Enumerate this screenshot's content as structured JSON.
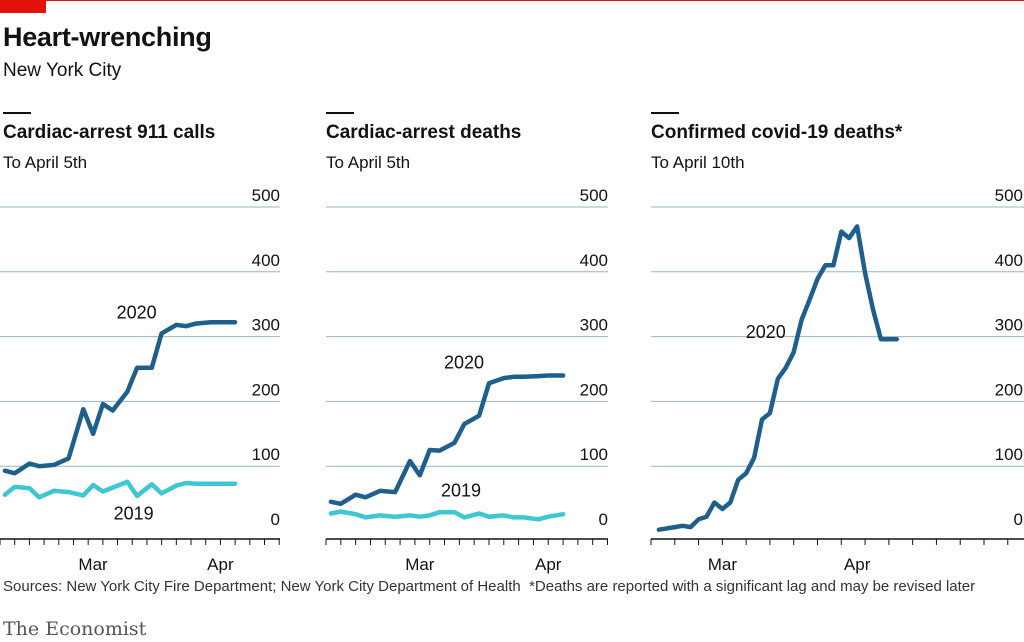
{
  "header": {
    "title": "Heart-wrenching",
    "subtitle": "New York City"
  },
  "colors": {
    "series_2020": "#1f5f8b",
    "series_2019": "#3ec7d3",
    "grid": "#9bb3c5",
    "red_tag": "#e3120b"
  },
  "chart_data": [
    {
      "type": "line",
      "title": "Cardiac-arrest 911 calls",
      "subtitle": "To April 5th",
      "ylim": [
        0,
        500
      ],
      "yticks": [
        "0",
        "100",
        "200",
        "300",
        "400",
        "500"
      ],
      "xticks": [
        "Mar",
        "Apr"
      ],
      "grid": true,
      "x_axis": "dates, 2020-02-18 to 2020-04-05",
      "series": [
        {
          "name": "2020",
          "x": [
            "2020-02-18",
            "2020-02-20",
            "2020-02-23",
            "2020-02-25",
            "2020-02-28",
            "2020-03-02",
            "2020-03-05",
            "2020-03-07",
            "2020-03-09",
            "2020-03-11",
            "2020-03-14",
            "2020-03-16",
            "2020-03-19",
            "2020-03-21",
            "2020-03-24",
            "2020-03-26",
            "2020-03-28",
            "2020-03-31",
            "2020-04-02",
            "2020-04-05"
          ],
          "values": [
            93,
            89,
            104,
            100,
            102,
            112,
            188,
            150,
            196,
            186,
            215,
            252,
            252,
            305,
            318,
            316,
            320,
            322,
            322,
            322
          ]
        },
        {
          "name": "2019",
          "x": [
            "2020-02-18",
            "2020-02-20",
            "2020-02-23",
            "2020-02-25",
            "2020-02-28",
            "2020-03-02",
            "2020-03-05",
            "2020-03-07",
            "2020-03-09",
            "2020-03-11",
            "2020-03-14",
            "2020-03-16",
            "2020-03-19",
            "2020-03-21",
            "2020-03-24",
            "2020-03-26",
            "2020-03-28",
            "2020-03-31",
            "2020-04-02",
            "2020-04-05"
          ],
          "values": [
            56,
            68,
            66,
            52,
            62,
            60,
            55,
            71,
            61,
            67,
            76,
            54,
            72,
            58,
            70,
            74,
            73,
            73,
            73,
            73
          ]
        }
      ],
      "labels": [
        {
          "text": "2020",
          "series": "2020"
        },
        {
          "text": "2019",
          "series": "2019"
        }
      ]
    },
    {
      "type": "line",
      "title": "Cardiac-arrest deaths",
      "subtitle": "To April 5th",
      "ylim": [
        0,
        500
      ],
      "yticks": [
        "0",
        "100",
        "200",
        "300",
        "400",
        "500"
      ],
      "xticks": [
        "Mar",
        "Apr"
      ],
      "grid": true,
      "x_axis": "dates, 2020-02-18 to 2020-04-05",
      "series": [
        {
          "name": "2020",
          "x": [
            "2020-02-18",
            "2020-02-20",
            "2020-02-23",
            "2020-02-25",
            "2020-02-28",
            "2020-03-02",
            "2020-03-05",
            "2020-03-07",
            "2020-03-09",
            "2020-03-11",
            "2020-03-14",
            "2020-03-16",
            "2020-03-19",
            "2020-03-21",
            "2020-03-24",
            "2020-03-26",
            "2020-03-28",
            "2020-03-31",
            "2020-04-02",
            "2020-04-05"
          ],
          "values": [
            45,
            42,
            56,
            52,
            62,
            60,
            108,
            86,
            125,
            124,
            136,
            165,
            178,
            228,
            236,
            238,
            238,
            239,
            240,
            240
          ]
        },
        {
          "name": "2019",
          "x": [
            "2020-02-18",
            "2020-02-20",
            "2020-02-23",
            "2020-02-25",
            "2020-02-28",
            "2020-03-02",
            "2020-03-05",
            "2020-03-07",
            "2020-03-09",
            "2020-03-11",
            "2020-03-14",
            "2020-03-16",
            "2020-03-19",
            "2020-03-21",
            "2020-03-24",
            "2020-03-26",
            "2020-03-28",
            "2020-03-31",
            "2020-04-02",
            "2020-04-05"
          ],
          "values": [
            27,
            30,
            26,
            21,
            24,
            22,
            24,
            22,
            24,
            29,
            29,
            21,
            27,
            22,
            24,
            21,
            21,
            18,
            22,
            26
          ]
        }
      ],
      "labels": [
        {
          "text": "2020",
          "series": "2020"
        },
        {
          "text": "2019",
          "series": "2019"
        }
      ]
    },
    {
      "type": "line",
      "title": "Confirmed covid-19 deaths*",
      "subtitle": "To April 10th",
      "ylim": [
        0,
        500
      ],
      "yticks": [
        "0",
        "100",
        "200",
        "300",
        "400",
        "500"
      ],
      "xticks": [
        "Mar",
        "Apr"
      ],
      "grid": true,
      "x_axis": "dates, 2020-02-18 to 2020-04-10",
      "series": [
        {
          "name": "2020",
          "x": [
            "2020-03-11",
            "2020-03-13",
            "2020-03-14",
            "2020-03-15",
            "2020-03-16",
            "2020-03-17",
            "2020-03-18",
            "2020-03-19",
            "2020-03-20",
            "2020-03-21",
            "2020-03-22",
            "2020-03-23",
            "2020-03-24",
            "2020-03-25",
            "2020-03-26",
            "2020-03-27",
            "2020-03-28",
            "2020-03-29",
            "2020-03-30",
            "2020-03-31",
            "2020-04-01",
            "2020-04-02",
            "2020-04-03",
            "2020-04-04",
            "2020-04-05",
            "2020-04-06",
            "2020-04-07",
            "2020-04-08",
            "2020-04-09",
            "2020-04-10"
          ],
          "values": [
            2,
            6,
            8,
            6,
            18,
            22,
            44,
            34,
            44,
            79,
            89,
            113,
            172,
            182,
            235,
            252,
            276,
            326,
            357,
            389,
            410,
            410,
            462,
            452,
            470,
            398,
            342,
            296,
            296,
            296
          ]
        }
      ],
      "labels": [
        {
          "text": "2020",
          "series": "2020"
        }
      ]
    }
  ],
  "footer": {
    "sources": "Sources: New York City Fire Department; New York City Department of Health",
    "note": "*Deaths are reported with a significant lag and may be revised later",
    "logo": "The Economist"
  }
}
